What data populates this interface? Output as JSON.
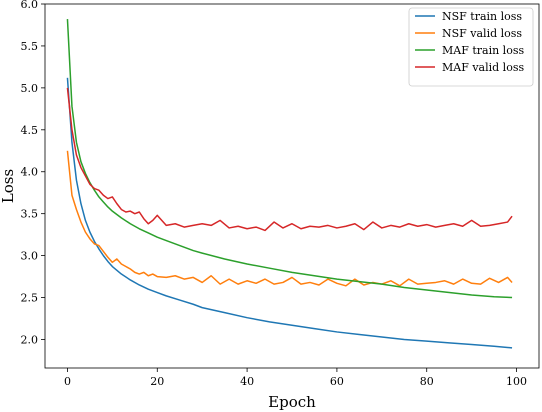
{
  "chart_data": {
    "type": "line",
    "title": "",
    "xlabel": "Epoch",
    "ylabel": "Loss",
    "xlim": [
      -5,
      105
    ],
    "ylim": [
      1.66,
      6.0
    ],
    "xticks": [
      0,
      20,
      40,
      60,
      80,
      100
    ],
    "yticks": [
      2.0,
      2.5,
      3.0,
      3.5,
      4.0,
      4.5,
      5.0,
      5.5,
      6.0
    ],
    "xtick_labels": [
      "0",
      "20",
      "40",
      "60",
      "80",
      "100"
    ],
    "ytick_labels": [
      "2.0",
      "2.5",
      "3.0",
      "3.5",
      "4.0",
      "4.5",
      "5.0",
      "5.5",
      "6.0"
    ],
    "grid": false,
    "legend_position": "top-right",
    "series": [
      {
        "name": "NSF train loss",
        "color": "#1f77b4",
        "x": [
          0,
          1,
          2,
          3,
          4,
          5,
          6,
          7,
          8,
          9,
          10,
          12,
          14,
          16,
          18,
          20,
          22,
          25,
          28,
          30,
          35,
          40,
          45,
          50,
          55,
          60,
          65,
          70,
          75,
          80,
          85,
          90,
          95,
          99
        ],
        "y": [
          5.12,
          4.35,
          3.9,
          3.62,
          3.42,
          3.28,
          3.17,
          3.08,
          3.0,
          2.93,
          2.87,
          2.78,
          2.71,
          2.65,
          2.6,
          2.56,
          2.52,
          2.47,
          2.42,
          2.38,
          2.32,
          2.26,
          2.21,
          2.17,
          2.13,
          2.09,
          2.06,
          2.03,
          2.0,
          1.98,
          1.96,
          1.94,
          1.92,
          1.9
        ]
      },
      {
        "name": "NSF valid loss",
        "color": "#ff7f0e",
        "x": [
          0,
          1,
          2,
          3,
          4,
          5,
          6,
          7,
          8,
          9,
          10,
          11,
          12,
          13,
          14,
          15,
          16,
          17,
          18,
          19,
          20,
          22,
          24,
          26,
          28,
          30,
          32,
          34,
          36,
          38,
          40,
          42,
          44,
          46,
          48,
          50,
          52,
          54,
          56,
          58,
          60,
          62,
          64,
          66,
          68,
          70,
          72,
          74,
          76,
          78,
          80,
          82,
          84,
          86,
          88,
          90,
          92,
          94,
          96,
          98,
          99
        ],
        "y": [
          4.25,
          3.72,
          3.55,
          3.4,
          3.28,
          3.2,
          3.14,
          3.12,
          3.05,
          2.98,
          2.92,
          2.96,
          2.9,
          2.87,
          2.84,
          2.8,
          2.78,
          2.8,
          2.76,
          2.78,
          2.75,
          2.74,
          2.76,
          2.72,
          2.74,
          2.68,
          2.76,
          2.66,
          2.72,
          2.66,
          2.7,
          2.67,
          2.72,
          2.66,
          2.68,
          2.74,
          2.66,
          2.68,
          2.65,
          2.72,
          2.67,
          2.64,
          2.72,
          2.65,
          2.68,
          2.66,
          2.7,
          2.64,
          2.72,
          2.66,
          2.67,
          2.68,
          2.7,
          2.66,
          2.72,
          2.67,
          2.66,
          2.73,
          2.68,
          2.74,
          2.68
        ]
      },
      {
        "name": "MAF train loss",
        "color": "#2ca02c",
        "x": [
          0,
          1,
          2,
          3,
          4,
          5,
          6,
          7,
          8,
          9,
          10,
          12,
          14,
          16,
          18,
          20,
          22,
          25,
          28,
          30,
          35,
          40,
          45,
          50,
          55,
          60,
          65,
          70,
          75,
          80,
          85,
          90,
          95,
          99
        ],
        "y": [
          5.82,
          4.78,
          4.35,
          4.12,
          3.98,
          3.87,
          3.78,
          3.7,
          3.64,
          3.58,
          3.53,
          3.45,
          3.38,
          3.32,
          3.27,
          3.22,
          3.18,
          3.12,
          3.06,
          3.03,
          2.96,
          2.9,
          2.85,
          2.8,
          2.76,
          2.72,
          2.69,
          2.66,
          2.62,
          2.59,
          2.56,
          2.53,
          2.51,
          2.5
        ]
      },
      {
        "name": "MAF valid loss",
        "color": "#d62728",
        "x": [
          0,
          1,
          2,
          3,
          4,
          5,
          6,
          7,
          8,
          9,
          10,
          11,
          12,
          13,
          14,
          15,
          16,
          17,
          18,
          19,
          20,
          22,
          24,
          26,
          28,
          30,
          32,
          34,
          36,
          38,
          40,
          42,
          44,
          46,
          48,
          50,
          52,
          54,
          56,
          58,
          60,
          62,
          64,
          66,
          68,
          70,
          72,
          74,
          76,
          78,
          80,
          82,
          84,
          86,
          88,
          90,
          92,
          94,
          96,
          98,
          99
        ],
        "y": [
          5.0,
          4.5,
          4.2,
          4.05,
          3.95,
          3.85,
          3.8,
          3.78,
          3.72,
          3.68,
          3.7,
          3.62,
          3.55,
          3.52,
          3.53,
          3.5,
          3.52,
          3.44,
          3.38,
          3.42,
          3.48,
          3.36,
          3.38,
          3.34,
          3.36,
          3.38,
          3.36,
          3.42,
          3.33,
          3.35,
          3.32,
          3.34,
          3.3,
          3.4,
          3.33,
          3.38,
          3.32,
          3.35,
          3.34,
          3.36,
          3.33,
          3.35,
          3.38,
          3.31,
          3.4,
          3.33,
          3.36,
          3.34,
          3.38,
          3.35,
          3.37,
          3.34,
          3.36,
          3.38,
          3.35,
          3.42,
          3.35,
          3.36,
          3.38,
          3.4,
          3.47
        ]
      }
    ]
  }
}
